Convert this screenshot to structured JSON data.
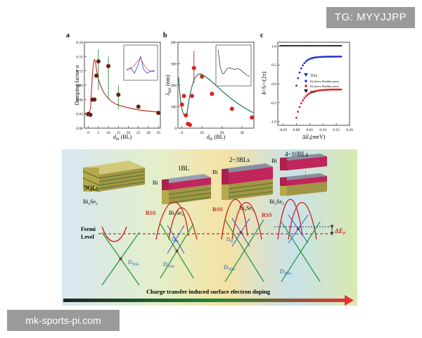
{
  "watermark_top": "TG: MYYJJPP",
  "watermark_bottom": "mk-sports-pi.com",
  "panels": {
    "a": {
      "letter": "a",
      "ylabel": "Damping factor α",
      "xlabel": "d",
      "xlabel_sub": "Bi",
      "xlabel_unit": " (BL)"
    },
    "b": {
      "letter": "b",
      "ylabel": "λ",
      "ylabel_sub": "IEE",
      "ylabel_unit": " (nm)",
      "xlabel": "d",
      "xlabel_sub": "Bi",
      "xlabel_unit": " (BL)"
    },
    "c": {
      "letter": "c",
      "ylabel": "δ<S>/(2π)",
      "xlabel": "ΔE",
      "xlabel_sub": "f",
      "xlabel_unit": "(meV)",
      "legend": [
        "TISS",
        "Ef above Rashba point",
        "Ef above Rashba point",
        "Net"
      ]
    }
  },
  "chart_data": [
    {
      "type": "scatter",
      "panel": "a",
      "ylabel": "Damping factor α",
      "xlabel": "dBi (BL)",
      "xlim": [
        -2,
        36
      ],
      "ylim": [
        0,
        0.18
      ],
      "xticks": [
        "0",
        "5",
        "10",
        "15",
        "20",
        "25",
        "30",
        "35"
      ],
      "yticks": [
        "0.00",
        "0.03",
        "0.06",
        "0.09",
        "0.12",
        "0.15",
        "0.18"
      ],
      "series": [
        {
          "x": [
            0,
            1,
            2,
            3,
            4,
            5,
            10,
            15,
            25,
            35
          ],
          "y": [
            0.03,
            0.028,
            0.06,
            0.06,
            0.11,
            0.14,
            0.13,
            0.07,
            0.045,
            0.032
          ]
        }
      ],
      "error_bars": [
        {
          "x": 5,
          "low": 0.08,
          "high": 0.165
        },
        {
          "x": 10,
          "low": 0.06,
          "high": 0.15
        },
        {
          "x": 15,
          "low": 0.04,
          "high": 0.09
        }
      ]
    },
    {
      "type": "scatter",
      "panel": "b",
      "ylabel": "λIEE (nm)",
      "xlabel": "dBi (BL)",
      "xlim": [
        -2,
        36
      ],
      "ylim": [
        0,
        400
      ],
      "xticks": [
        "0",
        "10",
        "20",
        "30"
      ],
      "yticks": [
        "0",
        "100",
        "200",
        "300",
        "400"
      ],
      "series": [
        {
          "x": [
            0,
            1,
            2,
            3,
            4,
            5,
            6,
            10,
            15,
            25,
            35
          ],
          "y": [
            110,
            150,
            60,
            20,
            15,
            150,
            280,
            240,
            160,
            90,
            50
          ]
        }
      ]
    },
    {
      "type": "scatter",
      "panel": "c",
      "ylabel": "δ<S>/(2π)",
      "xlabel": "ΔEf(meV)",
      "xlim": [
        -0.07,
        0.2
      ],
      "ylim": [
        -1.1,
        1.1
      ],
      "xticks": [
        "-0.05",
        "0.00",
        "0.05",
        "0.10",
        "0.15",
        "0.20"
      ],
      "yticks": [
        "-1.0",
        "-0.5",
        "0.0",
        "0.5",
        "1.0"
      ],
      "legend_position": "center-right"
    }
  ],
  "schematic": {
    "stage_labels": [
      "9QLs",
      "1BL",
      "2~3BLs",
      "4~10BLs"
    ],
    "material_bi": "Bi",
    "material_substrate": "Bi",
    "material_substrate_sub1": "2",
    "material_substrate_mid": "Se",
    "material_substrate_sub2": "3",
    "rss": "RSS",
    "fermi_line1": "Fermi",
    "fermi_line2": "Level",
    "d_tiss": "D",
    "d_tiss_sub": "TISS",
    "d_ri": "D",
    "d_ri_sub": "RI",
    "delta_ef": "ΔE",
    "delta_ef_sub": "F",
    "caption": "Charge transfer induced surface electron doping"
  }
}
